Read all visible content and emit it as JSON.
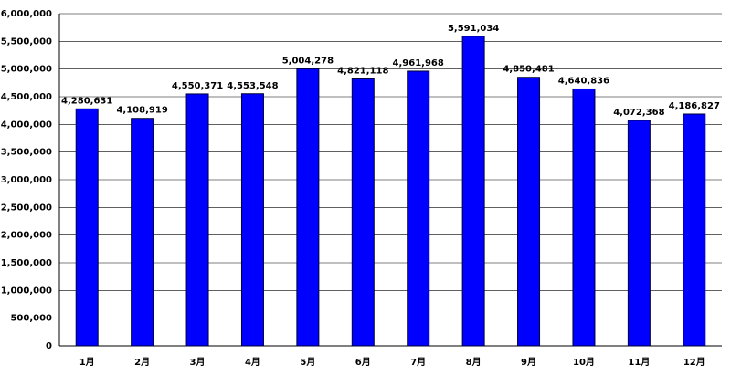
{
  "chart_data": {
    "type": "bar",
    "categories": [
      "1月",
      "2月",
      "3月",
      "4月",
      "5月",
      "6月",
      "7月",
      "8月",
      "9月",
      "10月",
      "11月",
      "12月"
    ],
    "values": [
      4280631,
      4108919,
      4550371,
      4553548,
      5004278,
      4821118,
      4961968,
      5591034,
      4850481,
      4640836,
      4072368,
      4186827
    ],
    "value_labels": [
      "4,280,631",
      "4,108,919",
      "4,550,371",
      "4,553,548",
      "5,004,278",
      "4,821,118",
      "4,961,968",
      "5,591,034",
      "4,850,481",
      "4,640,836",
      "4,072,368",
      "4,186,827"
    ],
    "color": "#0000ff",
    "ylim": [
      0,
      6000000
    ],
    "yticks": [
      0,
      {
        "value": 500000,
        "label": "500,000"
      },
      {
        "value": 1000000,
        "label": "1,000,000"
      },
      {
        "value": 1500000,
        "label": "1,500,000"
      },
      {
        "value": 2000000,
        "label": "2,000,000"
      },
      {
        "value": 2500000,
        "label": "2,500,000"
      },
      {
        "value": 3000000,
        "label": "3,000,000"
      },
      {
        "value": 3500000,
        "label": "3,500,000"
      },
      {
        "value": 4000000,
        "label": "4,000,000"
      },
      {
        "value": 4500000,
        "label": "4,500,000"
      },
      {
        "value": 5000000,
        "label": "5,000,000"
      },
      {
        "value": 5500000,
        "label": "5,500,000"
      },
      {
        "value": 6000000,
        "label": "6,000,000"
      }
    ],
    "grid": true
  }
}
